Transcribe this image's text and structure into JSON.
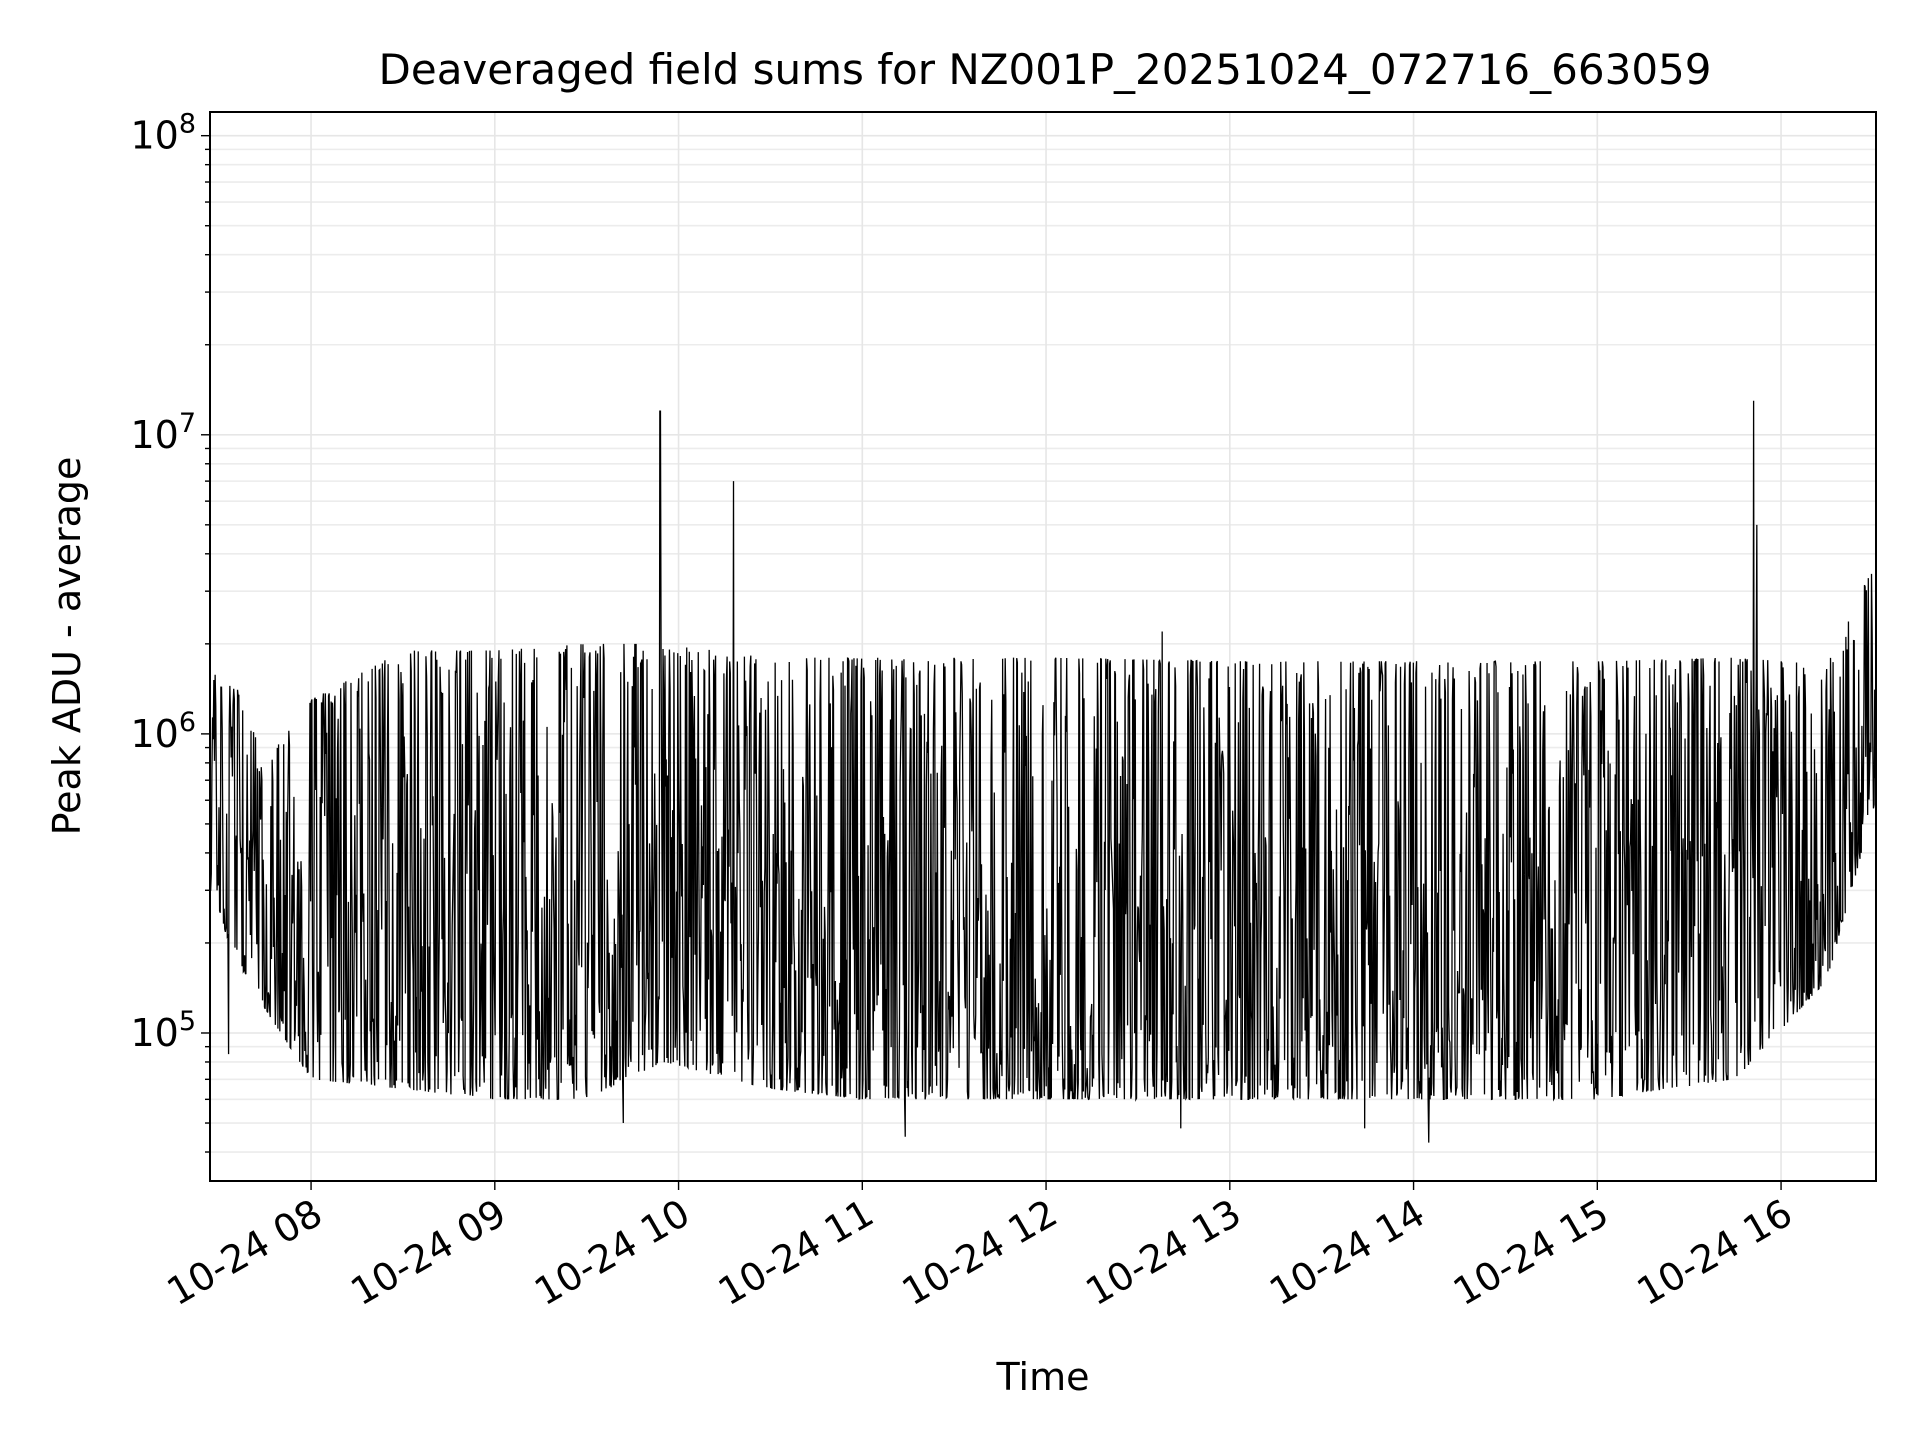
{
  "chart_data": {
    "type": "line",
    "title": "Deaveraged field sums for NZ001P_20251024_072716_663059",
    "xlabel": "Time",
    "ylabel": "Peak ADU - average",
    "y_scale": "log",
    "ylim": [
      32000,
      120000000
    ],
    "xlim": [
      "2025-10-24 07:27",
      "2025-10-24 16:31"
    ],
    "x_ticks": [
      {
        "value": "2025-10-24 08:00",
        "label": "10-24 08"
      },
      {
        "value": "2025-10-24 09:00",
        "label": "10-24 09"
      },
      {
        "value": "2025-10-24 10:00",
        "label": "10-24 10"
      },
      {
        "value": "2025-10-24 11:00",
        "label": "10-24 11"
      },
      {
        "value": "2025-10-24 12:00",
        "label": "10-24 12"
      },
      {
        "value": "2025-10-24 13:00",
        "label": "10-24 13"
      },
      {
        "value": "2025-10-24 14:00",
        "label": "10-24 14"
      },
      {
        "value": "2025-10-24 15:00",
        "label": "10-24 15"
      },
      {
        "value": "2025-10-24 16:00",
        "label": "10-24 16"
      }
    ],
    "y_ticks": [
      {
        "value": 100000,
        "base": "10",
        "exp": "5"
      },
      {
        "value": 1000000,
        "base": "10",
        "exp": "6"
      },
      {
        "value": 10000000,
        "base": "10",
        "exp": "7"
      },
      {
        "value": 100000000,
        "base": "10",
        "exp": "8"
      }
    ],
    "grid": true,
    "line_color": "#000000",
    "series_envelope": [
      {
        "x": "2025-10-24 07:27",
        "low": 300000,
        "high": 1600000
      },
      {
        "x": "2025-10-24 07:35",
        "low": 180000,
        "high": 1500000
      },
      {
        "x": "2025-10-24 07:45",
        "low": 120000,
        "high": 800000
      },
      {
        "x": "2025-10-24 08:00",
        "low": 70000,
        "high": 1300000
      },
      {
        "x": "2025-10-24 08:30",
        "low": 65000,
        "high": 1900000
      },
      {
        "x": "2025-10-24 09:00",
        "low": 60000,
        "high": 1900000
      },
      {
        "x": "2025-10-24 09:30",
        "low": 60000,
        "high": 2000000
      },
      {
        "x": "2025-10-24 09:55",
        "low": 80000,
        "high": 2000000
      },
      {
        "x": "2025-10-24 10:30",
        "low": 65000,
        "high": 1800000
      },
      {
        "x": "2025-10-24 11:00",
        "low": 60000,
        "high": 1800000
      },
      {
        "x": "2025-10-24 12:00",
        "low": 60000,
        "high": 1800000
      },
      {
        "x": "2025-10-24 13:00",
        "low": 60000,
        "high": 1750000
      },
      {
        "x": "2025-10-24 14:00",
        "low": 60000,
        "high": 1750000
      },
      {
        "x": "2025-10-24 15:00",
        "low": 60000,
        "high": 1750000
      },
      {
        "x": "2025-10-24 15:45",
        "low": 70000,
        "high": 1800000
      },
      {
        "x": "2025-10-24 16:15",
        "low": 150000,
        "high": 1700000
      },
      {
        "x": "2025-10-24 16:31",
        "low": 600000,
        "high": 3800000
      }
    ],
    "peaks": [
      {
        "x": "2025-10-24 09:54",
        "y": 12000000
      },
      {
        "x": "2025-10-24 10:18",
        "y": 7000000
      },
      {
        "x": "2025-10-24 12:38",
        "y": 2200000
      },
      {
        "x": "2025-10-24 15:51",
        "y": 13000000
      },
      {
        "x": "2025-10-24 15:52",
        "y": 5000000
      }
    ],
    "minima": [
      {
        "x": "2025-10-24 07:33",
        "y": 85000
      },
      {
        "x": "2025-10-24 09:42",
        "y": 50000
      },
      {
        "x": "2025-10-24 11:14",
        "y": 45000
      },
      {
        "x": "2025-10-24 12:44",
        "y": 48000
      },
      {
        "x": "2025-10-24 13:44",
        "y": 48000
      },
      {
        "x": "2025-10-24 14:05",
        "y": 43000
      }
    ]
  }
}
